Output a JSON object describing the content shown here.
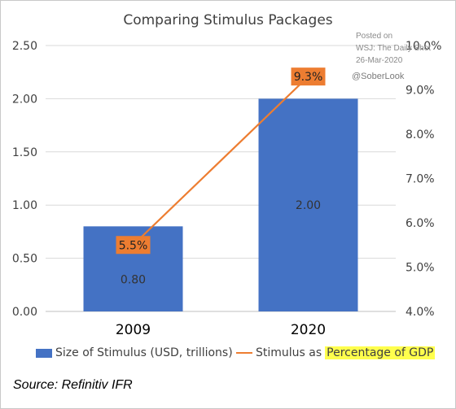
{
  "chart_data": {
    "type": "bar",
    "title": "Comparing Stimulus Packages",
    "categories": [
      "2009",
      "2020"
    ],
    "series": [
      {
        "name": "Size of Stimulus (USD, trillions)",
        "type": "bar",
        "axis": "left",
        "values": [
          0.8,
          2.0
        ],
        "labels": [
          "0.80",
          "2.00"
        ],
        "color": "#4472c4"
      },
      {
        "name": "Stimulus as Percentage of GDP",
        "type": "line",
        "axis": "right",
        "values": [
          5.5,
          9.3
        ],
        "labels": [
          "5.5%",
          "9.3%"
        ],
        "color": "#ed7d31"
      }
    ],
    "ylim_left": [
      0,
      2.5
    ],
    "ylim_right": [
      4.0,
      10.0
    ],
    "yticks_left": [
      "0.00",
      "0.50",
      "1.00",
      "1.50",
      "2.00",
      "2.50"
    ],
    "yticks_right": [
      "4.0%",
      "5.0%",
      "6.0%",
      "7.0%",
      "8.0%",
      "9.0%",
      "10.0%"
    ],
    "grid": true,
    "legend_position": "bottom"
  },
  "legend": {
    "bar_label": "Size of Stimulus (USD, trillions)",
    "line_prefix": "Stimulus as",
    "line_highlight": "Percentage of GDP"
  },
  "watermark": {
    "line1": "Posted on",
    "line2": "WSJ: The Daily Shot",
    "line3": "26-Mar-2020",
    "handle": "@SoberLook"
  },
  "source": "Source: Refinitiv IFR",
  "colors": {
    "bar": "#4472c4",
    "line": "#ed7d31",
    "highlight": "#ffff4d"
  }
}
